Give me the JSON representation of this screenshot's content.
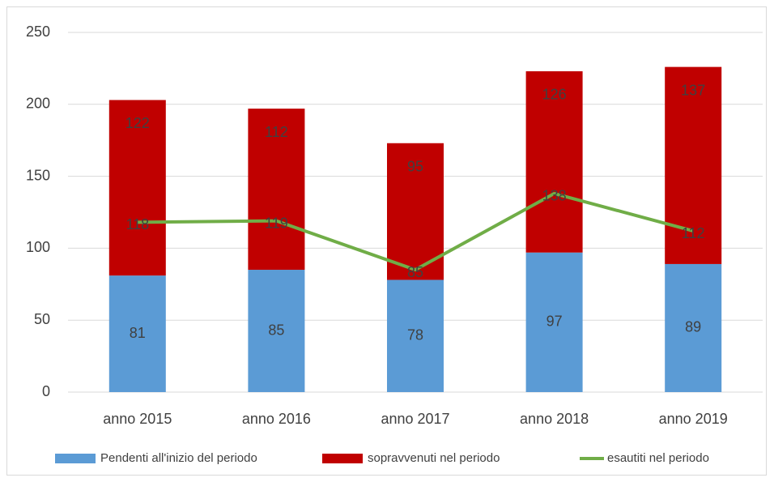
{
  "chart_data": {
    "type": "bar",
    "stacked": true,
    "categories": [
      "anno 2015",
      "anno 2016",
      "anno 2017",
      "anno 2018",
      "anno 2019"
    ],
    "series": [
      {
        "name": "Pendenti all'inizio del periodo",
        "color": "#5b9bd5",
        "values": [
          81,
          85,
          78,
          97,
          89
        ]
      },
      {
        "name": "sopravvenuti nel periodo",
        "color": "#c00000",
        "values": [
          122,
          112,
          95,
          126,
          137
        ]
      },
      {
        "name": "esautiti nel periodo",
        "color": "#70ad47",
        "type": "line",
        "values": [
          118,
          119,
          85,
          138,
          112
        ]
      }
    ],
    "ylim": [
      0,
      250
    ],
    "yticks": [
      0,
      50,
      100,
      150,
      200,
      250
    ],
    "grid": true,
    "legend": "bottom"
  }
}
